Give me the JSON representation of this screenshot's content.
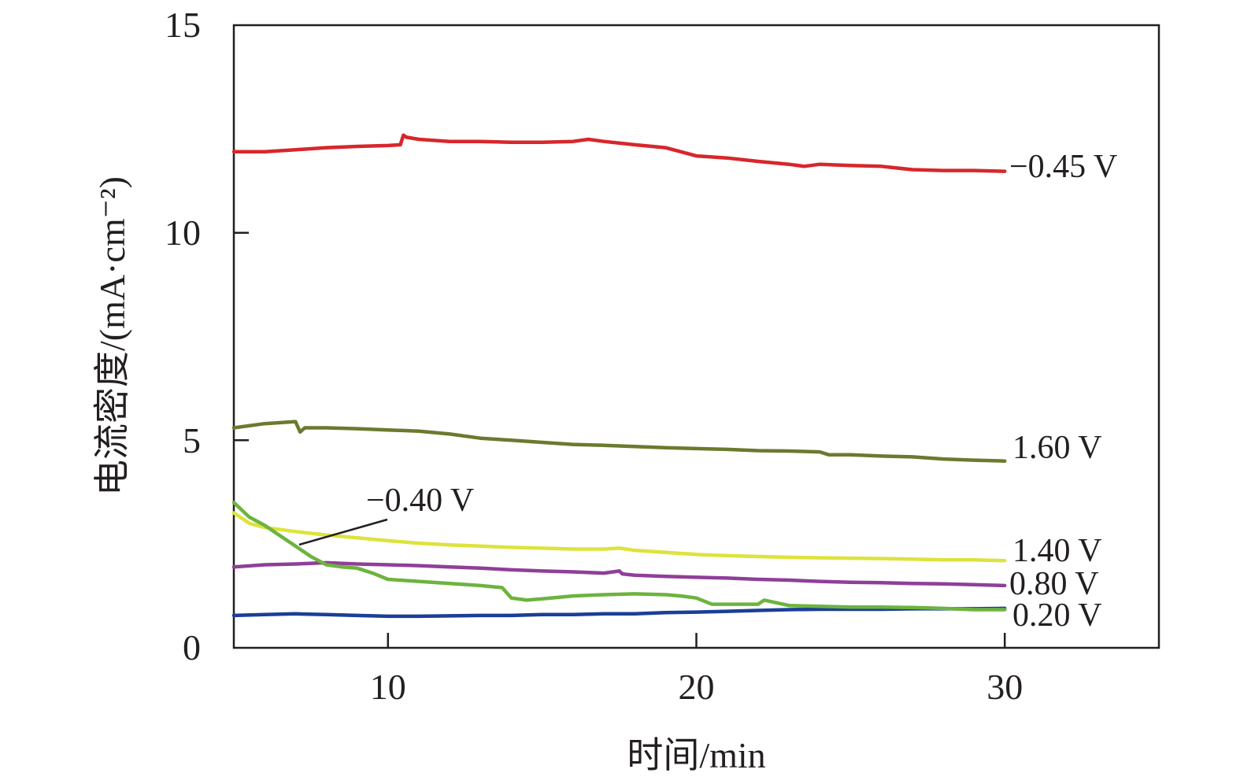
{
  "chart_data": {
    "type": "line",
    "title": "",
    "xlabel": "时间/min",
    "ylabel": "电流密度/(mA·cm⁻²)",
    "xlim": [
      5,
      35
    ],
    "ylim": [
      0,
      15
    ],
    "xticks": [
      10,
      20,
      30
    ],
    "yticks": [
      0,
      5,
      10,
      15
    ],
    "grid": false,
    "legend": "none",
    "series": [
      {
        "name": "−0.45 V",
        "color": "#d7272b",
        "x": [
          5,
          6,
          7,
          8,
          9,
          10,
          10.4,
          10.5,
          10.6,
          11,
          12,
          13,
          14,
          15,
          16,
          16.5,
          17,
          18,
          19,
          20,
          21,
          22,
          23,
          23.5,
          24,
          25,
          26,
          27,
          28,
          29,
          30
        ],
        "y": [
          11.95,
          11.95,
          12.0,
          12.05,
          12.08,
          12.1,
          12.12,
          12.35,
          12.3,
          12.25,
          12.2,
          12.2,
          12.18,
          12.18,
          12.2,
          12.25,
          12.2,
          12.12,
          12.05,
          11.85,
          11.8,
          11.72,
          11.65,
          11.6,
          11.65,
          11.62,
          11.6,
          11.52,
          11.5,
          11.5,
          11.48
        ]
      },
      {
        "name": "1.60 V",
        "color": "#6a7a2e",
        "x": [
          5,
          6,
          7,
          7.15,
          7.3,
          8,
          9,
          10,
          11,
          12,
          13,
          14,
          15,
          16,
          17,
          18,
          19,
          20,
          21,
          22,
          23,
          24,
          24.3,
          25,
          26,
          27,
          28,
          29,
          30
        ],
        "y": [
          5.3,
          5.4,
          5.45,
          5.2,
          5.3,
          5.3,
          5.28,
          5.25,
          5.22,
          5.15,
          5.05,
          5.0,
          4.95,
          4.9,
          4.88,
          4.85,
          4.82,
          4.8,
          4.78,
          4.75,
          4.74,
          4.72,
          4.65,
          4.65,
          4.62,
          4.6,
          4.55,
          4.52,
          4.5
        ]
      },
      {
        "name": "1.40 V",
        "color": "#dde33c",
        "x": [
          5,
          5.5,
          6,
          7,
          8,
          9,
          10,
          11,
          12,
          13,
          14,
          15,
          16,
          17,
          17.5,
          18,
          19,
          20,
          21,
          22,
          23,
          24,
          25,
          26,
          27,
          28,
          29,
          30
        ],
        "y": [
          3.25,
          3.0,
          2.9,
          2.8,
          2.72,
          2.65,
          2.58,
          2.52,
          2.48,
          2.45,
          2.42,
          2.4,
          2.38,
          2.38,
          2.4,
          2.35,
          2.3,
          2.25,
          2.22,
          2.2,
          2.18,
          2.17,
          2.16,
          2.15,
          2.14,
          2.12,
          2.12,
          2.1
        ]
      },
      {
        "name": "0.80 V",
        "color": "#8f3f98",
        "x": [
          5,
          6,
          7,
          8,
          9,
          10,
          11,
          12,
          13,
          14,
          15,
          16,
          17,
          17.5,
          17.6,
          18,
          19,
          20,
          21,
          22,
          23,
          24,
          25,
          26,
          27,
          28,
          29,
          30
        ],
        "y": [
          1.95,
          2.0,
          2.02,
          2.05,
          2.02,
          2.0,
          1.98,
          1.95,
          1.92,
          1.88,
          1.85,
          1.83,
          1.8,
          1.85,
          1.78,
          1.75,
          1.72,
          1.7,
          1.68,
          1.65,
          1.63,
          1.6,
          1.58,
          1.57,
          1.55,
          1.54,
          1.52,
          1.5
        ]
      },
      {
        "name": "0.20 V",
        "color": "#1b3f96",
        "x": [
          5,
          6,
          7,
          8,
          9,
          10,
          11,
          12,
          13,
          14,
          15,
          16,
          17,
          18,
          19,
          20,
          21,
          22,
          23,
          24,
          25,
          26,
          27,
          28,
          29,
          30
        ],
        "y": [
          0.78,
          0.8,
          0.82,
          0.8,
          0.78,
          0.76,
          0.76,
          0.77,
          0.78,
          0.78,
          0.8,
          0.8,
          0.82,
          0.82,
          0.85,
          0.86,
          0.88,
          0.9,
          0.92,
          0.93,
          0.93,
          0.93,
          0.94,
          0.94,
          0.94,
          0.95
        ]
      },
      {
        "name": "−0.40 V",
        "color": "#6db33f",
        "x": [
          5,
          5.5,
          6,
          6.5,
          7,
          7.5,
          8,
          8.5,
          9,
          9.5,
          10,
          11,
          12,
          13,
          13.7,
          14,
          14.5,
          15,
          16,
          17,
          18,
          19,
          19.5,
          20,
          20.5,
          21,
          22,
          22.2,
          23,
          24,
          25,
          26,
          27,
          28,
          29,
          30
        ],
        "y": [
          3.5,
          3.15,
          2.95,
          2.7,
          2.45,
          2.2,
          2.0,
          1.95,
          1.92,
          1.8,
          1.65,
          1.6,
          1.55,
          1.5,
          1.45,
          1.2,
          1.15,
          1.18,
          1.25,
          1.28,
          1.3,
          1.28,
          1.25,
          1.2,
          1.05,
          1.05,
          1.05,
          1.15,
          1.02,
          1.0,
          0.98,
          0.98,
          0.97,
          0.95,
          0.92,
          0.92
        ]
      }
    ],
    "labels": {
      "s045": "−0.45 V",
      "s160": "1.60 V",
      "s140": "1.40 V",
      "s080": "0.80 V",
      "s020": "0.20 V",
      "s040": "−0.40 V"
    }
  }
}
